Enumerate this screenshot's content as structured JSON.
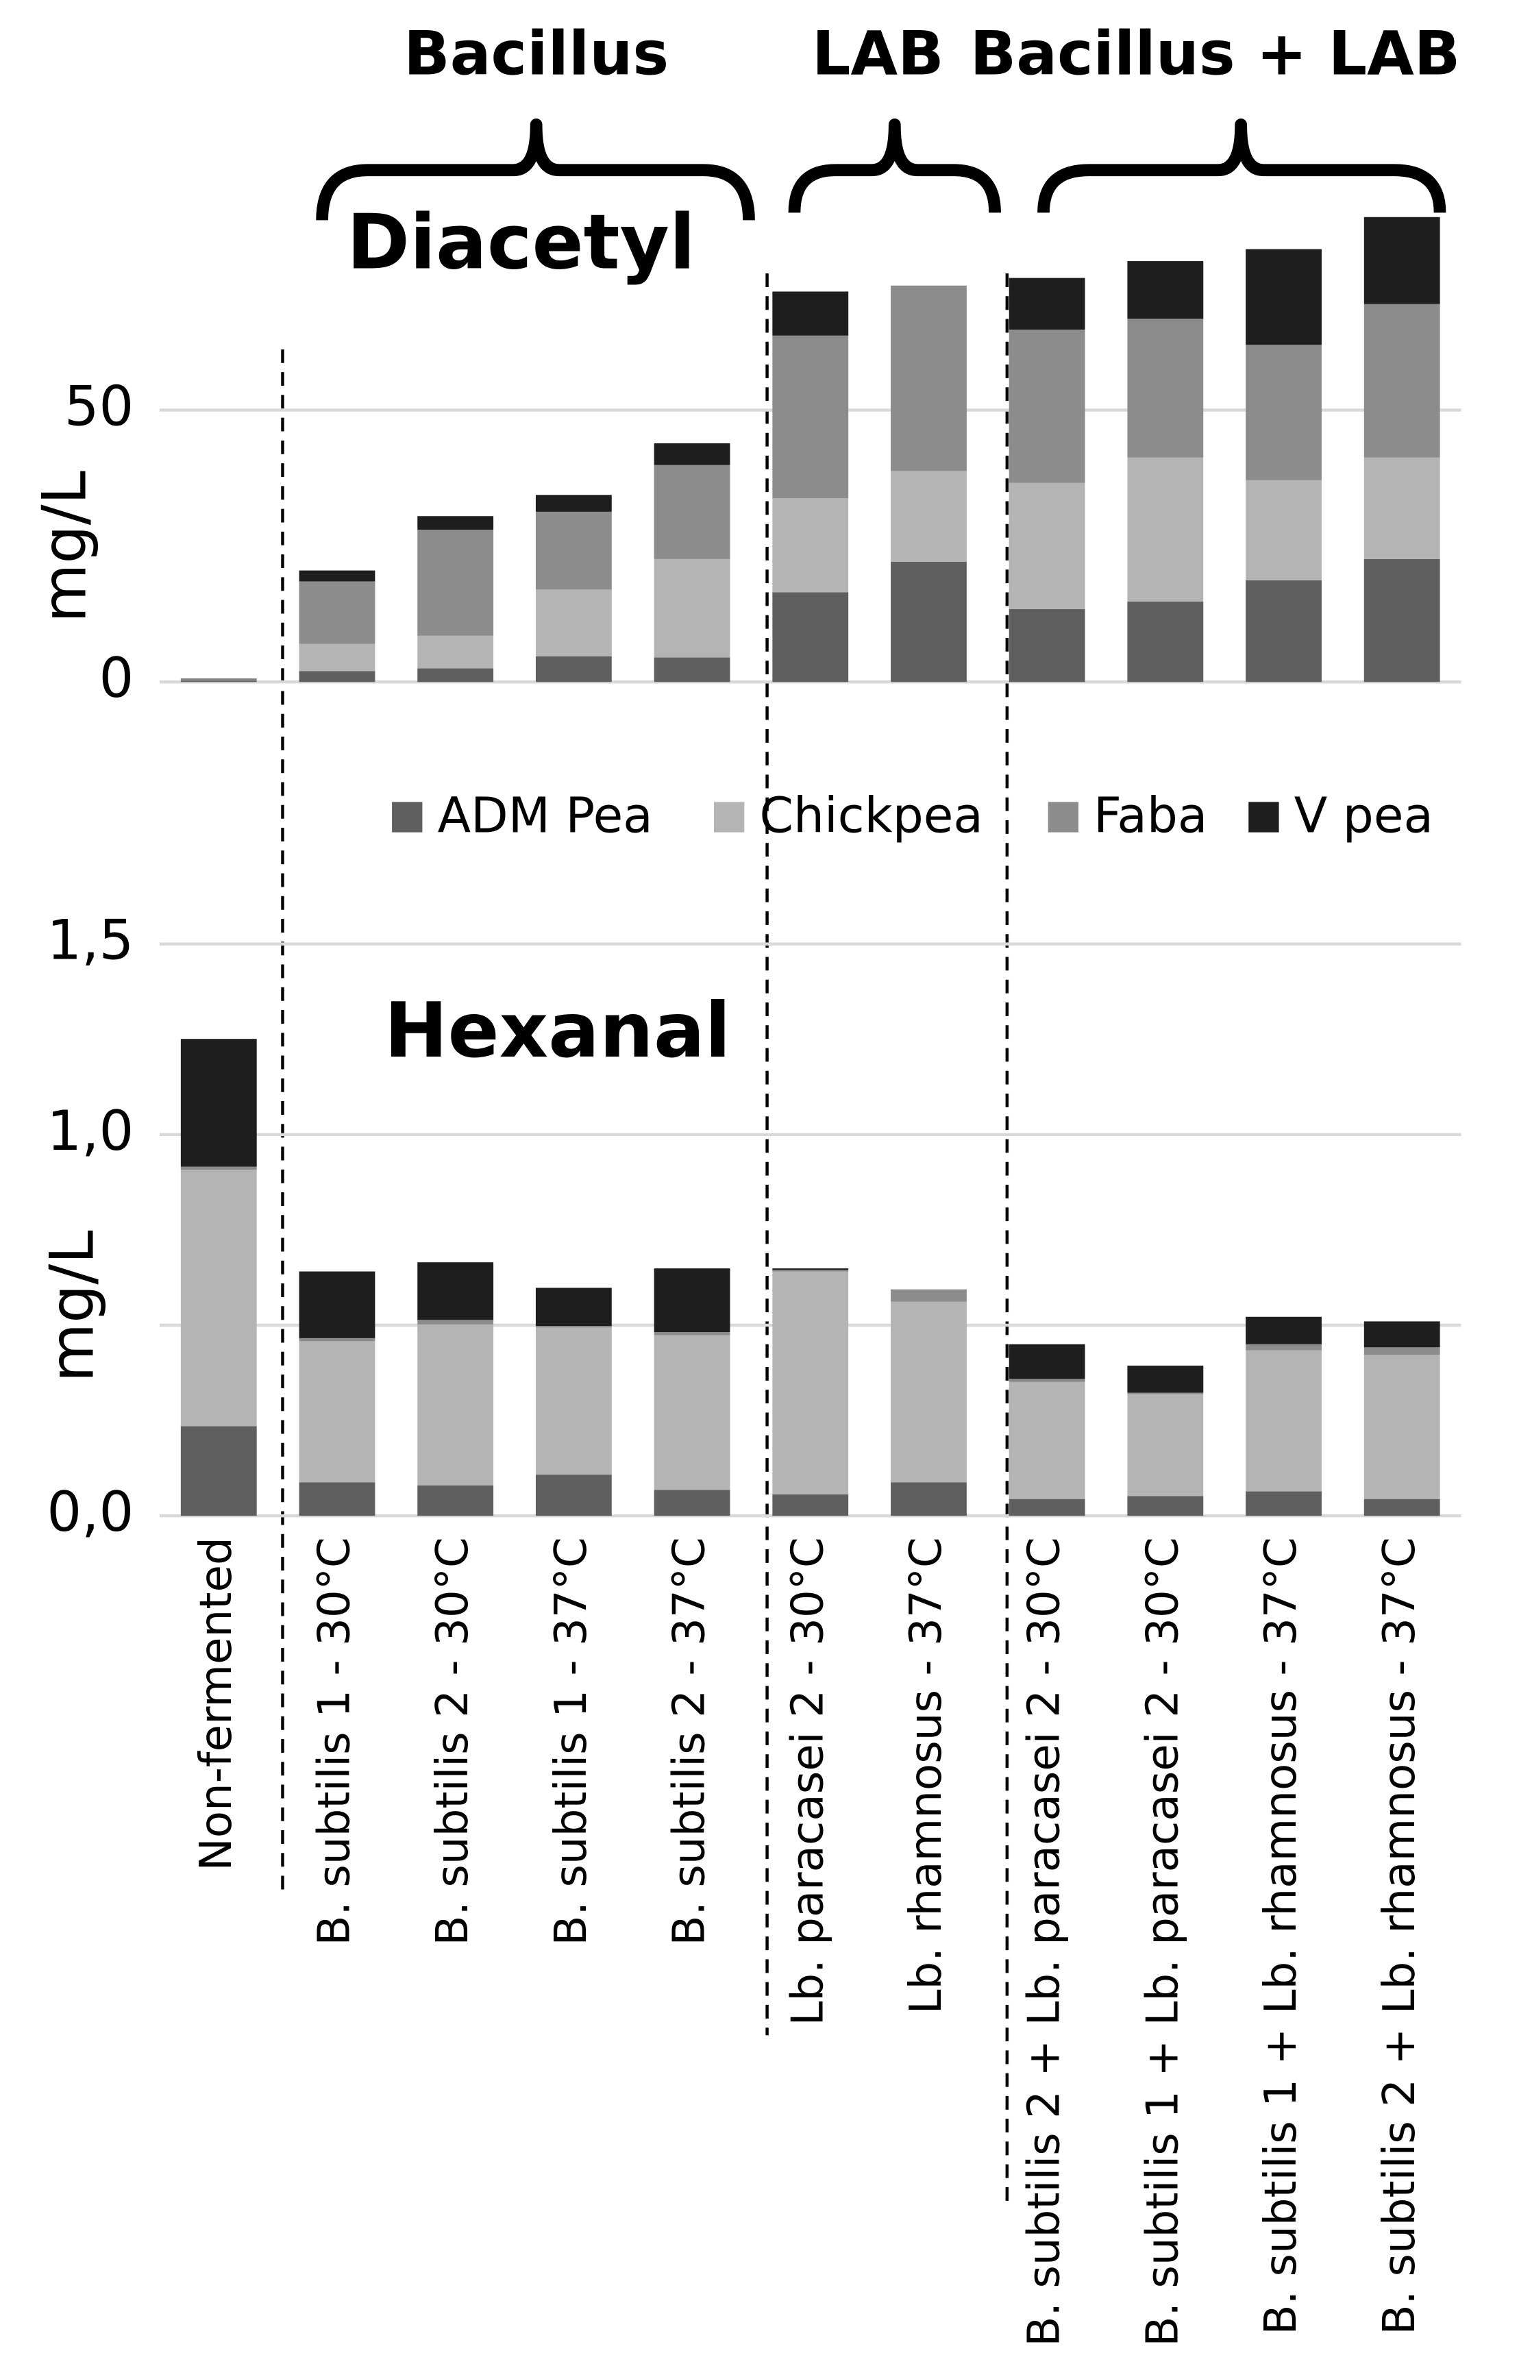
{
  "chart_data": [
    {
      "type": "bar",
      "stacked": true,
      "title": "Diacetyl",
      "ylabel": "mg/L",
      "annotations": [
        "Bacillus",
        "LAB",
        "Bacillus + LAB"
      ],
      "ylim": [
        0,
        90
      ],
      "yticks": [
        0,
        50
      ],
      "ygrid": [
        0,
        50
      ],
      "series": [
        {
          "name": "ADM Pea",
          "color": "#5f5f5f",
          "values": [
            0.3,
            2,
            2.5,
            4.7,
            4.5,
            16.5,
            22.1,
            13.4,
            14.8,
            18.7,
            22.6
          ]
        },
        {
          "name": "Chickpea",
          "color": "#b4b4b4",
          "values": [
            0.1,
            5,
            6,
            12.3,
            18.1,
            17.3,
            16.7,
            23.2,
            26.5,
            18.4,
            18.7
          ]
        },
        {
          "name": "Faba",
          "color": "#8c8c8c",
          "values": [
            0.1,
            11.5,
            19.5,
            14.3,
            17.3,
            29.9,
            34.1,
            28.2,
            25.5,
            24.9,
            28.2
          ]
        },
        {
          "name": "V pea",
          "color": "#1e1e1e",
          "values": [
            0.1,
            2,
            2.5,
            3.1,
            4,
            8.1,
            0,
            9.5,
            10.6,
            17.6,
            16
          ]
        }
      ]
    },
    {
      "type": "bar",
      "stacked": true,
      "title": "Hexanal",
      "ylabel": "mg/L",
      "categories": [
        "Non-fermented",
        "B. subtilis 1 - 30°C",
        "B. subtilis 2 - 30°C",
        "B. subtilis 1 - 37°C",
        "B. subtilis 2 - 37°C",
        "Lb. paracasei 2 - 30°C",
        "Lb. rhamnosus - 37°C",
        "B. subtilis 2 + Lb. paracasei 2 - 30°C",
        "B. subtilis 1 + Lb. paracasei 2 - 30°C",
        "B. subtilis 1 + Lb. rhamnosus - 37°C",
        "B. subtilis 2 + Lb. rhamnosus - 37°C"
      ],
      "ylim": [
        0,
        1.6
      ],
      "yticks": [
        {
          "value": 0,
          "label": "0,0"
        },
        {
          "value": 1.0,
          "label": "1,0"
        },
        {
          "value": 1.5,
          "label": "1,5"
        }
      ],
      "ygrid": [
        0,
        0.5,
        1.0,
        1.5
      ],
      "series": [
        {
          "color": "#5f5f5f",
          "values": [
            0.235,
            0.088,
            0.08,
            0.108,
            0.068,
            0.056,
            0.088,
            0.044,
            0.052,
            0.064,
            0.044
          ]
        },
        {
          "color": "#b4b4b4",
          "values": [
            0.673,
            0.37,
            0.422,
            0.386,
            0.406,
            0.585,
            0.474,
            0.307,
            0.267,
            0.37,
            0.378
          ]
        },
        {
          "color": "#8c8c8c",
          "values": [
            0.008,
            0.008,
            0.012,
            0.004,
            0.008,
            0.004,
            0.032,
            0.008,
            0.004,
            0.016,
            0.02
          ]
        },
        {
          "color": "#1e1e1e",
          "values": [
            0.335,
            0.175,
            0.151,
            0.1,
            0.167,
            0.004,
            0,
            0.091,
            0.071,
            0.072,
            0.068
          ]
        }
      ]
    }
  ]
}
